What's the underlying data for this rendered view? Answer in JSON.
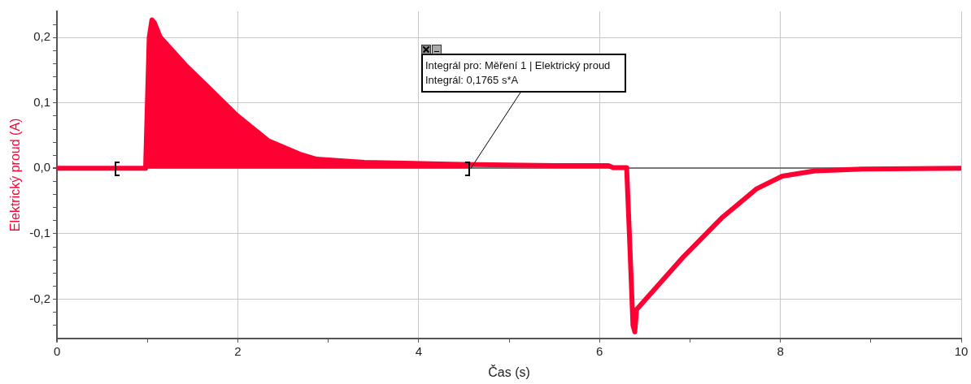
{
  "chart_data": {
    "type": "line",
    "xlabel": "Čas (s)",
    "ylabel": "Elektrický proud (A)",
    "xlim": [
      0,
      10
    ],
    "ylim": [
      -0.26,
      0.24
    ],
    "xticks": [
      0,
      {
        "value": 1,
        "label": null
      },
      2,
      {
        "value": 3,
        "label": null
      },
      4,
      {
        "value": 5,
        "label": null
      },
      6,
      {
        "value": 7,
        "label": null
      },
      8,
      {
        "value": 9,
        "label": null
      },
      10
    ],
    "yticks": [
      {
        "value": -0.24,
        "label": null
      },
      {
        "value": -0.22,
        "label": null
      },
      {
        "value": -0.2,
        "label": "-0,2"
      },
      {
        "value": -0.18,
        "label": null
      },
      {
        "value": -0.16,
        "label": null
      },
      {
        "value": -0.14,
        "label": null
      },
      {
        "value": -0.12,
        "label": null
      },
      {
        "value": -0.1,
        "label": "-0,1"
      },
      {
        "value": -0.08,
        "label": null
      },
      {
        "value": -0.06,
        "label": null
      },
      {
        "value": -0.04,
        "label": null
      },
      {
        "value": -0.02,
        "label": null
      },
      {
        "value": 0,
        "label": "0,0"
      },
      {
        "value": 0.02,
        "label": null
      },
      {
        "value": 0.04,
        "label": null
      },
      {
        "value": 0.06,
        "label": null
      },
      {
        "value": 0.08,
        "label": null
      },
      {
        "value": 0.1,
        "label": "0,1"
      },
      {
        "value": 0.12,
        "label": null
      },
      {
        "value": 0.14,
        "label": null
      },
      {
        "value": 0.16,
        "label": null
      },
      {
        "value": 0.18,
        "label": null
      },
      {
        "value": 0.2,
        "label": "0,2"
      },
      {
        "value": 0.22,
        "label": null
      }
    ],
    "grid": true,
    "legend": false,
    "marker": "none",
    "line_style": "solid",
    "annotations": [
      {
        "text": "Integrál pro: Měření 1 | Elektrický proud\nIntegrál: 0,1765 s*A",
        "x": 4.55,
        "y": 0
      }
    ],
    "series": [
      {
        "type": "area",
        "color": "#ff0033",
        "x": [
          0.67,
          0.98,
          1.02,
          1.05,
          1.08,
          1.14,
          1.42,
          1.99,
          2.34,
          2.7,
          2.87,
          3.4,
          4.0,
          4.55
        ],
        "values": [
          0,
          0,
          0.2,
          0.227,
          0.222,
          0.201,
          0.158,
          0.081,
          0.042,
          0.021,
          0.014,
          0.009,
          0.007,
          0.005
        ]
      },
      {
        "type": "line",
        "color": "#ff0033",
        "x": [
          0,
          0.98,
          1.02,
          1.05,
          1.08,
          1.14,
          1.42,
          1.99,
          2.34,
          2.7,
          2.87,
          3.4,
          4.46,
          5.5,
          6.1,
          6.15,
          6.3,
          6.33,
          6.37,
          6.39,
          6.41,
          6.93,
          7.35,
          7.74,
          8.02,
          8.38,
          8.9,
          10
        ],
        "values": [
          0,
          0,
          0.2,
          0.227,
          0.222,
          0.201,
          0.158,
          0.081,
          0.042,
          0.021,
          0.014,
          0.009,
          0.006,
          0.004,
          0.004,
          0.001,
          0.001,
          -0.1,
          -0.24,
          -0.25,
          -0.216,
          -0.135,
          -0.076,
          -0.031,
          -0.012,
          -0.004,
          -0.001,
          0
        ]
      }
    ]
  }
}
